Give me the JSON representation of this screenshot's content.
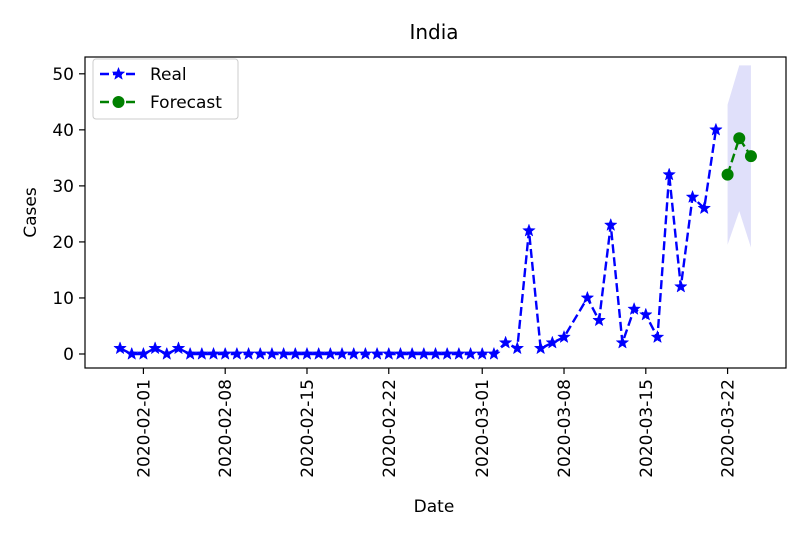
{
  "chart_data": {
    "type": "line",
    "title": "India",
    "xlabel": "Date",
    "ylabel": "Cases",
    "xlim": [
      "2020-01-27",
      "2020-03-27"
    ],
    "ylim": [
      -2.5,
      53
    ],
    "x_ticks": [
      "2020-02-01",
      "2020-02-08",
      "2020-02-15",
      "2020-02-22",
      "2020-03-01",
      "2020-03-08",
      "2020-03-15",
      "2020-03-22"
    ],
    "y_ticks": [
      0,
      10,
      20,
      30,
      40,
      50
    ],
    "grid": false,
    "legend_position": "upper-left",
    "series": [
      {
        "name": "Real",
        "color": "#0000ff",
        "marker": "star",
        "line_style": "dashed",
        "x": [
          "2020-01-30",
          "2020-01-31",
          "2020-02-01",
          "2020-02-02",
          "2020-02-03",
          "2020-02-04",
          "2020-02-05",
          "2020-02-06",
          "2020-02-07",
          "2020-02-08",
          "2020-02-09",
          "2020-02-10",
          "2020-02-11",
          "2020-02-12",
          "2020-02-13",
          "2020-02-14",
          "2020-02-15",
          "2020-02-16",
          "2020-02-17",
          "2020-02-18",
          "2020-02-19",
          "2020-02-20",
          "2020-02-21",
          "2020-02-22",
          "2020-02-23",
          "2020-02-24",
          "2020-02-25",
          "2020-02-26",
          "2020-02-27",
          "2020-02-28",
          "2020-02-29",
          "2020-03-01",
          "2020-03-02",
          "2020-03-03",
          "2020-03-04",
          "2020-03-05",
          "2020-03-06",
          "2020-03-07",
          "2020-03-08",
          "2020-03-10",
          "2020-03-11",
          "2020-03-12",
          "2020-03-13",
          "2020-03-14",
          "2020-03-15",
          "2020-03-16",
          "2020-03-17",
          "2020-03-18",
          "2020-03-19",
          "2020-03-20",
          "2020-03-21"
        ],
        "values": [
          1,
          0,
          0,
          1,
          0,
          1,
          0,
          0,
          0,
          0,
          0,
          0,
          0,
          0,
          0,
          0,
          0,
          0,
          0,
          0,
          0,
          0,
          0,
          0,
          0,
          0,
          0,
          0,
          0,
          0,
          0,
          0,
          0,
          2,
          1,
          22,
          1,
          2,
          3,
          10,
          6,
          23,
          2,
          8,
          7,
          3,
          32,
          12,
          28,
          26,
          40
        ]
      },
      {
        "name": "Forecast",
        "color": "#008000",
        "marker": "circle",
        "line_style": "dashed",
        "x": [
          "2020-03-22",
          "2020-03-23",
          "2020-03-24"
        ],
        "values": [
          32,
          38.5,
          35.3
        ],
        "band_upper": [
          44.5,
          51.5,
          51.5
        ],
        "band_lower": [
          19.5,
          25.5,
          19
        ],
        "band_color": "#e0e0fa"
      }
    ]
  }
}
